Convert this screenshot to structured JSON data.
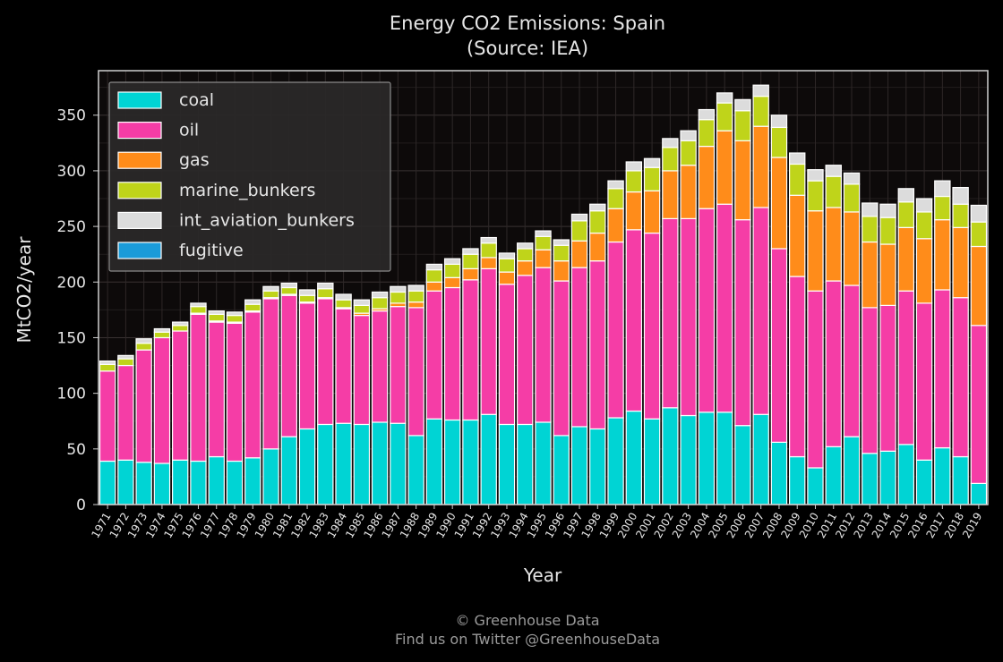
{
  "chart_data": {
    "type": "bar",
    "stacked": true,
    "title": "Energy CO2 Emissions: Spain",
    "subtitle": "(Source: IEA)",
    "xlabel": "Year",
    "ylabel": "MtCO2/year",
    "ylim": [
      0,
      390
    ],
    "yticks": [
      0,
      50,
      100,
      150,
      200,
      250,
      300,
      350
    ],
    "grid": true,
    "legend_position": "top-left",
    "categories": [
      "1971",
      "1972",
      "1973",
      "1974",
      "1975",
      "1976",
      "1977",
      "1978",
      "1979",
      "1980",
      "1981",
      "1982",
      "1983",
      "1984",
      "1985",
      "1986",
      "1987",
      "1988",
      "1989",
      "1990",
      "1991",
      "1992",
      "1993",
      "1994",
      "1995",
      "1996",
      "1997",
      "1998",
      "1999",
      "2000",
      "2001",
      "2002",
      "2003",
      "2004",
      "2005",
      "2006",
      "2007",
      "2008",
      "2009",
      "2010",
      "2011",
      "2012",
      "2013",
      "2014",
      "2015",
      "2016",
      "2017",
      "2018",
      "2019"
    ],
    "series": [
      {
        "name": "coal",
        "color": "#00d4d4",
        "values": [
          39,
          40,
          38,
          37,
          40,
          39,
          43,
          39,
          42,
          50,
          61,
          68,
          72,
          73,
          72,
          74,
          73,
          62,
          77,
          76,
          76,
          81,
          72,
          72,
          74,
          62,
          70,
          68,
          78,
          84,
          77,
          87,
          80,
          83,
          83,
          71,
          81,
          56,
          43,
          33,
          52,
          61,
          46,
          48,
          54,
          40,
          51,
          43,
          19
        ]
      },
      {
        "name": "oil",
        "color": "#f53da6",
        "values": [
          81,
          85,
          101,
          113,
          116,
          132,
          121,
          124,
          131,
          135,
          127,
          113,
          113,
          103,
          98,
          100,
          105,
          115,
          115,
          119,
          126,
          131,
          126,
          134,
          139,
          139,
          143,
          151,
          158,
          163,
          167,
          170,
          177,
          183,
          187,
          185,
          186,
          174,
          162,
          159,
          149,
          136,
          131,
          131,
          138,
          141,
          142,
          143,
          142
        ]
      },
      {
        "name": "gas",
        "color": "#ff8c1a",
        "values": [
          0,
          0,
          0,
          0,
          0,
          1,
          1,
          1,
          1,
          1,
          1,
          1,
          1,
          1,
          2,
          2,
          3,
          5,
          8,
          9,
          10,
          10,
          11,
          13,
          16,
          18,
          24,
          25,
          30,
          34,
          38,
          43,
          48,
          56,
          66,
          71,
          73,
          82,
          73,
          72,
          66,
          66,
          59,
          55,
          57,
          58,
          63,
          63,
          71
        ]
      },
      {
        "name": "marine_bunkers",
        "color": "#bfd41a",
        "values": [
          6,
          6,
          6,
          5,
          5,
          6,
          6,
          6,
          6,
          6,
          6,
          6,
          8,
          7,
          7,
          10,
          10,
          10,
          11,
          12,
          13,
          13,
          12,
          11,
          12,
          14,
          18,
          20,
          18,
          19,
          21,
          21,
          22,
          24,
          25,
          27,
          27,
          27,
          28,
          27,
          28,
          25,
          23,
          24,
          23,
          24,
          21,
          21,
          22
        ]
      },
      {
        "name": "int_aviation_bunkers",
        "color": "#dcdcdc",
        "values": [
          3,
          3,
          4,
          3,
          3,
          3,
          3,
          3,
          4,
          4,
          4,
          5,
          5,
          5,
          5,
          5,
          5,
          5,
          5,
          5,
          5,
          5,
          5,
          5,
          5,
          5,
          6,
          6,
          7,
          8,
          8,
          8,
          9,
          9,
          9,
          10,
          10,
          11,
          10,
          10,
          10,
          10,
          12,
          12,
          12,
          12,
          14,
          15,
          15
        ]
      },
      {
        "name": "fugitive",
        "color": "#1a9bd9",
        "values": [
          0,
          0,
          0,
          0,
          0,
          0,
          0,
          0,
          0,
          0,
          0,
          0,
          0,
          0,
          0,
          0,
          0,
          0,
          0,
          0,
          0,
          0,
          0,
          0,
          0,
          0,
          0,
          0,
          0,
          0,
          0,
          0,
          0,
          0,
          0,
          0,
          0,
          0,
          0,
          0,
          0,
          0,
          0,
          0,
          0,
          0,
          0,
          0,
          0
        ]
      }
    ]
  },
  "footer": {
    "line1": "© Greenhouse Data",
    "line2": "Find us on Twitter @GreenhouseData"
  }
}
